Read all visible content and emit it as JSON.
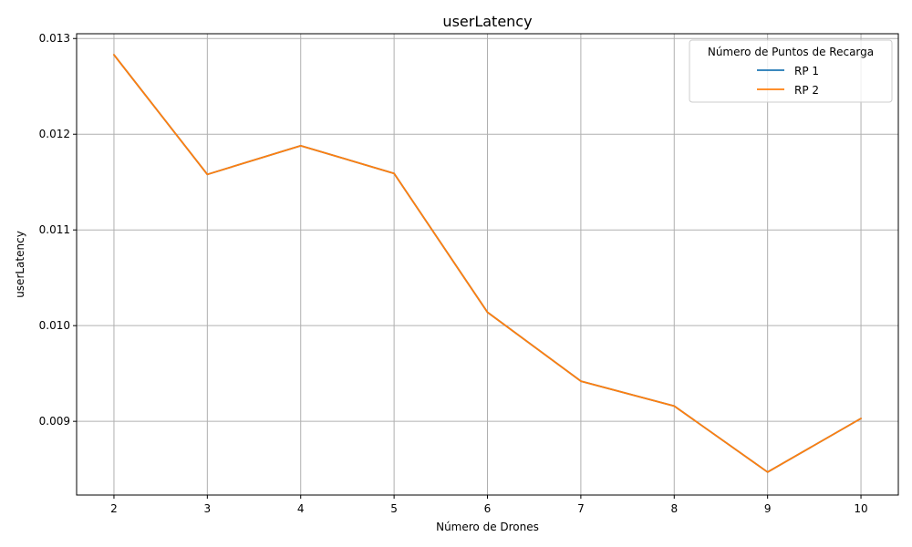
{
  "chart_data": {
    "type": "line",
    "title": "userLatency",
    "xlabel": "Número de Drones",
    "ylabel": "userLatency",
    "x": [
      2,
      3,
      4,
      5,
      6,
      7,
      8,
      9,
      10
    ],
    "xlim": [
      1.6,
      10.4
    ],
    "ylim": [
      0.00823,
      0.01305
    ],
    "xticks": [
      2,
      3,
      4,
      5,
      6,
      7,
      8,
      9,
      10
    ],
    "yticks": [
      0.009,
      0.01,
      0.011,
      0.012,
      0.013
    ],
    "ytick_labels": [
      "0.009",
      "0.010",
      "0.011",
      "0.012",
      "0.013"
    ],
    "grid": true,
    "legend": {
      "title": "Número de Puntos de Recarga",
      "placement": "top-right"
    },
    "series": [
      {
        "name": "RP 1",
        "color": "#1f77b4",
        "values": [
          0.01283,
          0.01158,
          0.01188,
          0.01159,
          0.01014,
          0.00942,
          0.00916,
          0.00847,
          0.00903
        ]
      },
      {
        "name": "RP 2",
        "color": "#ff7f0e",
        "values": [
          0.01283,
          0.01158,
          0.01188,
          0.01159,
          0.01014,
          0.00942,
          0.00916,
          0.00847,
          0.00903
        ]
      }
    ]
  }
}
